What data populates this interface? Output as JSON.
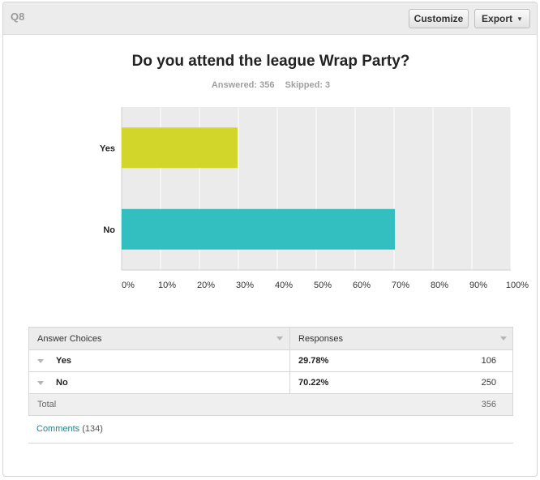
{
  "question": {
    "label": "Q8",
    "title": "Do you attend the league Wrap Party?",
    "answered": "Answered: 356",
    "skipped": "Skipped: 3"
  },
  "toolbar": {
    "customize_label": "Customize",
    "export_label": "Export"
  },
  "chart_data": {
    "type": "bar",
    "orientation": "horizontal",
    "categories": [
      "Yes",
      "No"
    ],
    "values": [
      29.78,
      70.22
    ],
    "colors": [
      "#d3d62a",
      "#33bfbf"
    ],
    "xlim": [
      0,
      100
    ],
    "xticks": [
      "0%",
      "10%",
      "20%",
      "30%",
      "40%",
      "50%",
      "60%",
      "70%",
      "80%",
      "90%",
      "100%"
    ],
    "grid": true
  },
  "table": {
    "headers": [
      "Answer Choices",
      "Responses"
    ],
    "rows": [
      {
        "choice": "Yes",
        "percent": "29.78%",
        "count": "106"
      },
      {
        "choice": "No",
        "percent": "70.22%",
        "count": "250"
      }
    ],
    "total_label": "Total",
    "total_value": "356"
  },
  "comments": {
    "link_label": "Comments",
    "count": "(134)"
  },
  "colors": {
    "header_bg": "#ececec",
    "link": "#2a7f8a"
  }
}
